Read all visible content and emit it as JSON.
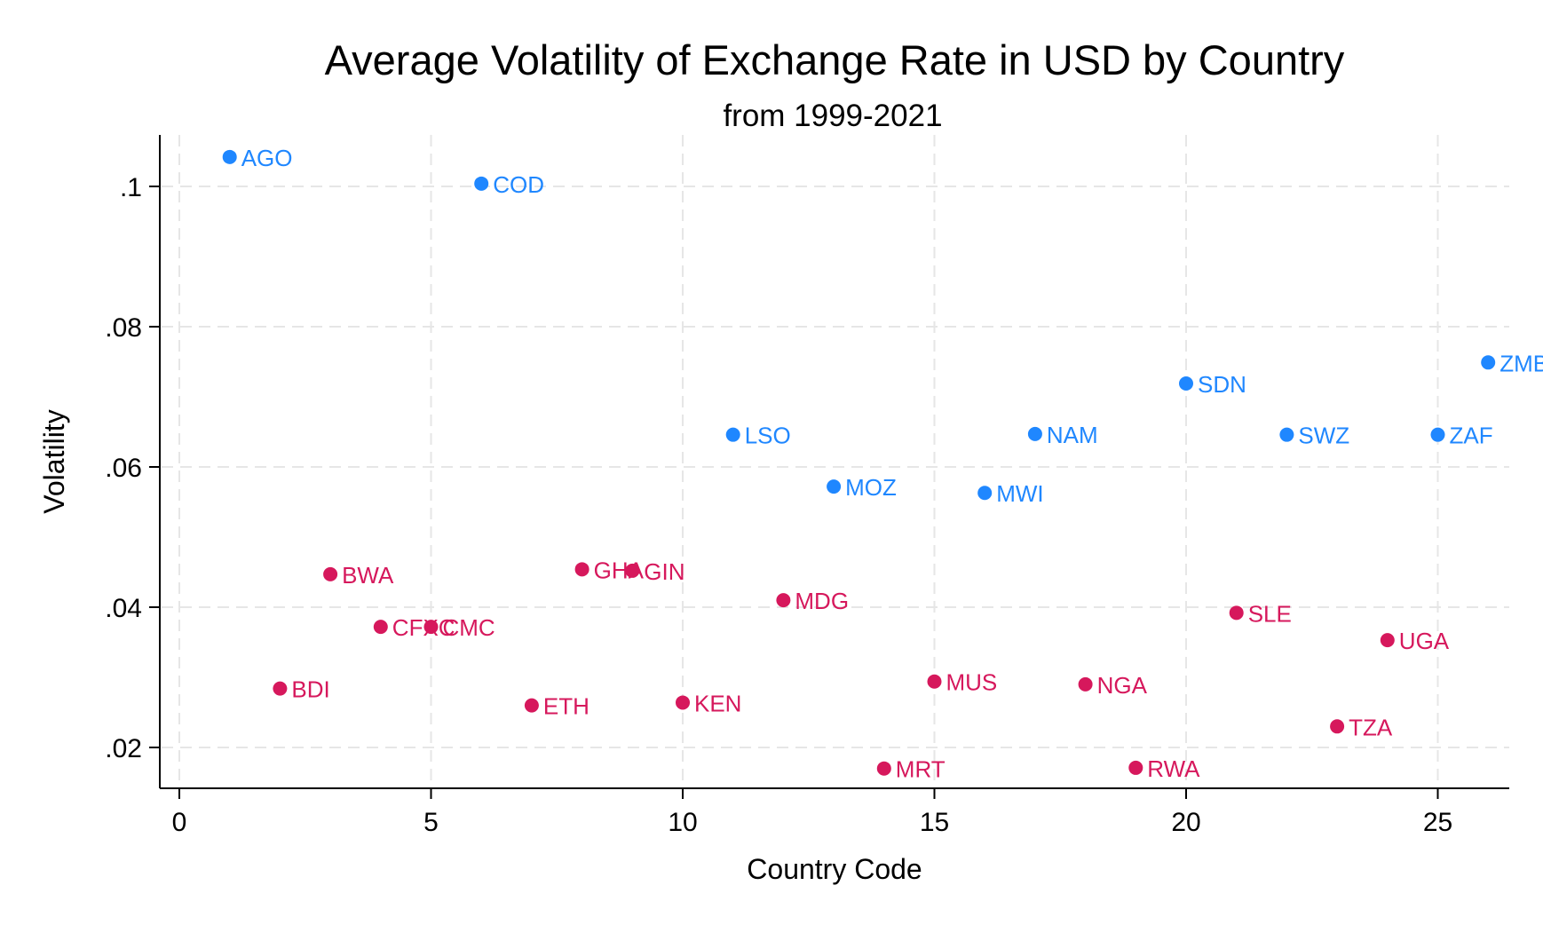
{
  "colors": {
    "high_group": "#1f87ff",
    "low_group": "#d6185c",
    "text": "#000000",
    "grid": "#e6e6e6"
  },
  "chart_data": {
    "type": "scatter",
    "title": "Average Volatility of Exchange Rate in USD by Country",
    "subtitle": "from 1999-2021",
    "xlabel": "Country Code",
    "ylabel": "Volatility",
    "xlim": [
      0,
      26
    ],
    "ylim": [
      0.017,
      0.106
    ],
    "x_ticks": [
      0,
      5,
      10,
      15,
      20,
      25
    ],
    "x_tick_labels": [
      "0",
      "5",
      "10",
      "15",
      "20",
      "25"
    ],
    "y_ticks": [
      0.02,
      0.04,
      0.06,
      0.08,
      0.1
    ],
    "y_tick_labels": [
      ".02",
      ".04",
      ".06",
      ".08",
      ".1"
    ],
    "grid": true,
    "legend": "none",
    "series": [
      {
        "color": "#1f87ff",
        "points": [
          {
            "label": "AGO",
            "x": 1,
            "y": 0.1042
          },
          {
            "label": "COD",
            "x": 6,
            "y": 0.1004
          },
          {
            "label": "LSO",
            "x": 11,
            "y": 0.0646
          },
          {
            "label": "MOZ",
            "x": 13,
            "y": 0.0572
          },
          {
            "label": "MWI",
            "x": 16,
            "y": 0.0563
          },
          {
            "label": "NAM",
            "x": 17,
            "y": 0.0647
          },
          {
            "label": "SDN",
            "x": 20,
            "y": 0.0719
          },
          {
            "label": "SWZ",
            "x": 22,
            "y": 0.0646
          },
          {
            "label": "ZAF",
            "x": 25,
            "y": 0.0646
          },
          {
            "label": "ZMB",
            "x": 26,
            "y": 0.0749
          }
        ]
      },
      {
        "color": "#d6185c",
        "points": [
          {
            "label": "BDI",
            "x": 2,
            "y": 0.0284
          },
          {
            "label": "BWA",
            "x": 3,
            "y": 0.0447
          },
          {
            "label": "CFXC",
            "x": 4,
            "y": 0.0372
          },
          {
            "label": "CMC",
            "x": 5,
            "y": 0.0372
          },
          {
            "label": "ETH",
            "x": 7,
            "y": 0.026
          },
          {
            "label": "GHA",
            "x": 8,
            "y": 0.0454
          },
          {
            "label": "GIN",
            "x": 9,
            "y": 0.0452
          },
          {
            "label": "KEN",
            "x": 10,
            "y": 0.0264
          },
          {
            "label": "MDG",
            "x": 12,
            "y": 0.041
          },
          {
            "label": "MRT",
            "x": 14,
            "y": 0.017
          },
          {
            "label": "MUS",
            "x": 15,
            "y": 0.0294
          },
          {
            "label": "NGA",
            "x": 18,
            "y": 0.029
          },
          {
            "label": "RWA",
            "x": 19,
            "y": 0.0171
          },
          {
            "label": "SLE",
            "x": 21,
            "y": 0.0392
          },
          {
            "label": "TZA",
            "x": 23,
            "y": 0.023
          },
          {
            "label": "UGA",
            "x": 24,
            "y": 0.0353
          }
        ]
      }
    ]
  }
}
